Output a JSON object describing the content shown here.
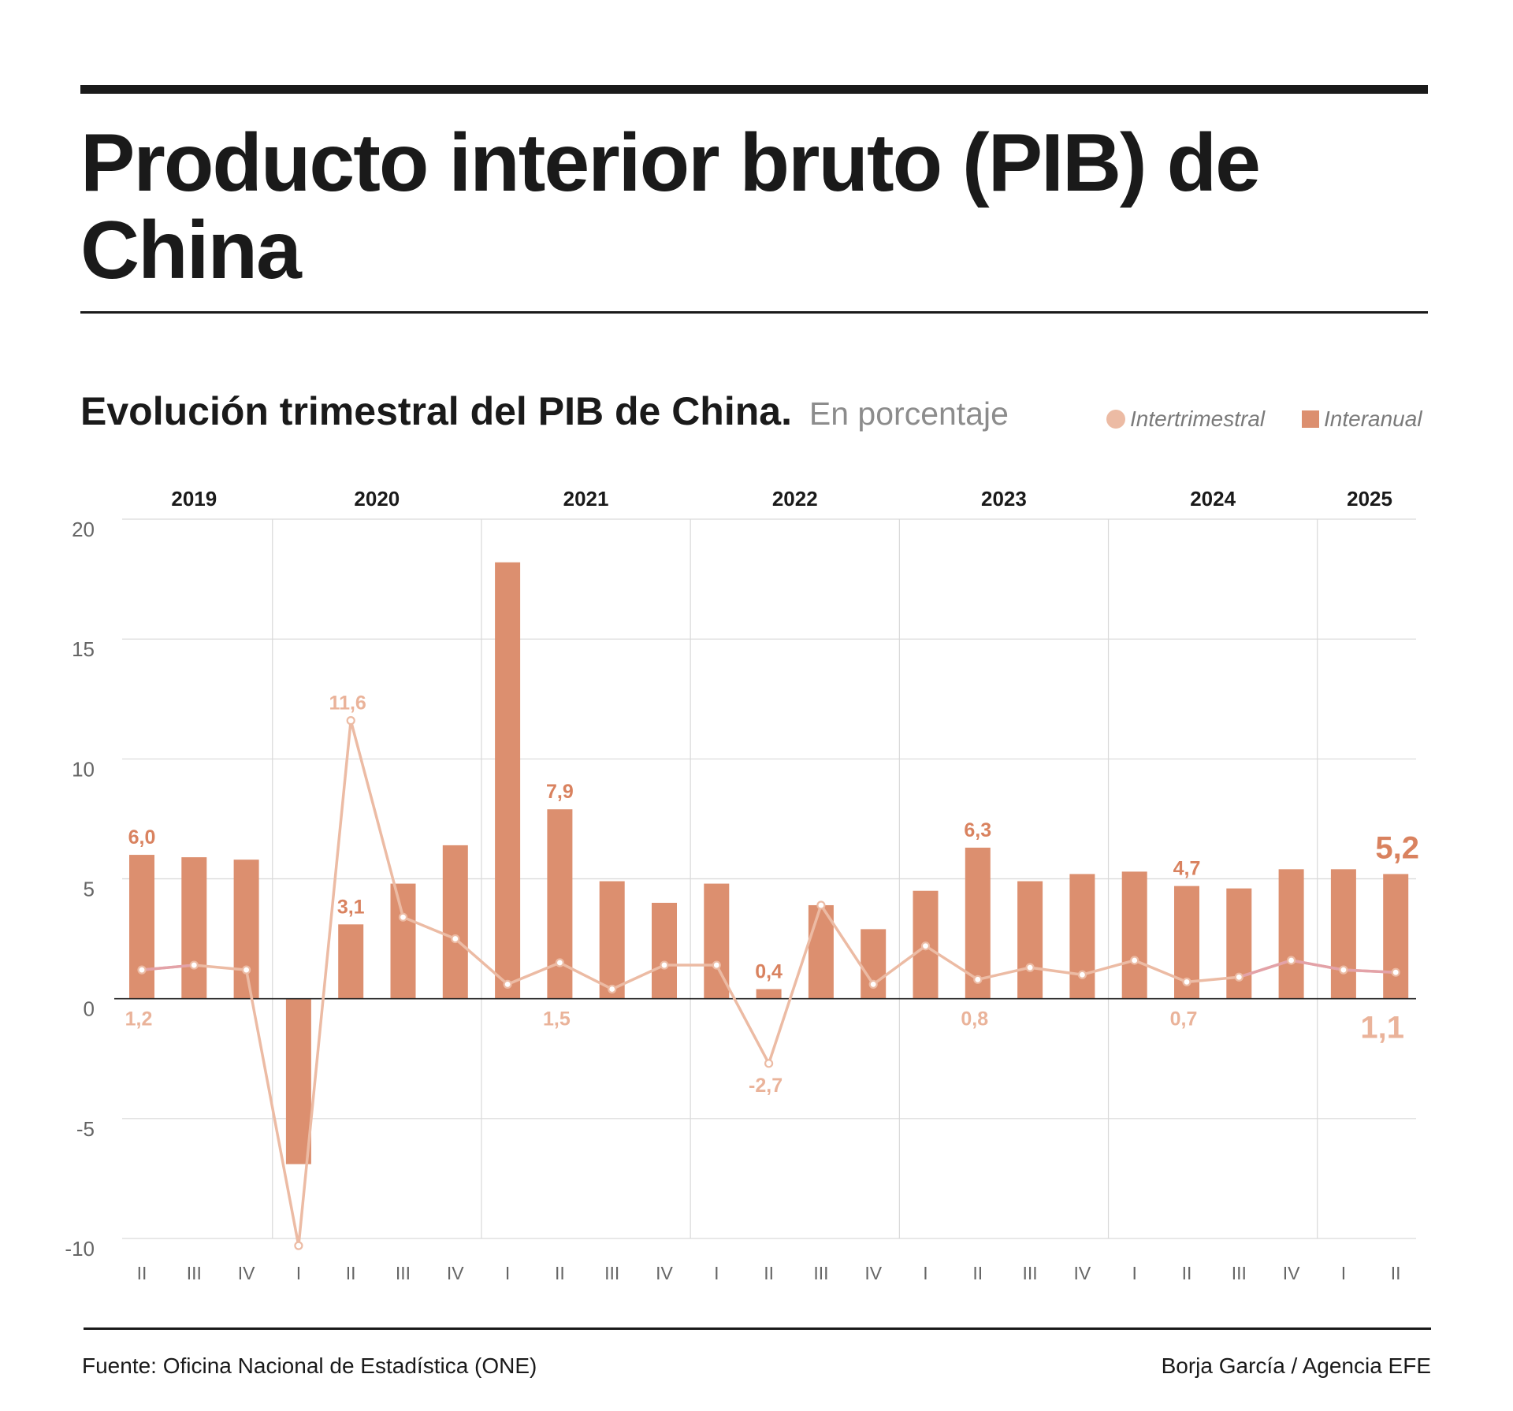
{
  "title": "Producto interior bruto (PIB) de China",
  "subtitle": "Evolución trimestral del PIB de China.",
  "subtitle_unit": "En porcentaje",
  "legend": {
    "intertrimestral": "Intertrimestral",
    "interanual": "Interanual"
  },
  "footer": {
    "source": "Fuente: Oficina Nacional de Estadística (ONE)",
    "credit": "Borja García / Agencia EFE"
  },
  "colors": {
    "bar": "#dc8f6f",
    "line": "#ecbba4",
    "line_highlight": "#e3a2a8",
    "label_bar": "#d9825f",
    "label_line": "#eab39a",
    "grid": "#d9d9d9",
    "axis_text": "#666666"
  },
  "chart_data": {
    "type": "bar",
    "ylim": [
      -10,
      20
    ],
    "yticks": [
      20,
      15,
      10,
      5,
      0,
      -5,
      -10
    ],
    "grid": true,
    "legend_position": "top-right",
    "years": [
      {
        "label": "2019",
        "start": 0,
        "end": 2
      },
      {
        "label": "2020",
        "start": 3,
        "end": 6
      },
      {
        "label": "2021",
        "start": 7,
        "end": 10
      },
      {
        "label": "2022",
        "start": 11,
        "end": 14
      },
      {
        "label": "2023",
        "start": 15,
        "end": 18
      },
      {
        "label": "2024",
        "start": 19,
        "end": 22
      },
      {
        "label": "2025",
        "start": 23,
        "end": 24
      }
    ],
    "categories": [
      "II",
      "III",
      "IV",
      "I",
      "II",
      "III",
      "IV",
      "I",
      "II",
      "III",
      "IV",
      "I",
      "II",
      "III",
      "IV",
      "I",
      "II",
      "III",
      "IV",
      "I",
      "II",
      "III",
      "IV",
      "I",
      "II"
    ],
    "series": [
      {
        "name": "Interanual",
        "type": "bar",
        "values": [
          6.0,
          5.9,
          5.8,
          -6.9,
          3.1,
          4.8,
          6.4,
          18.2,
          7.9,
          4.9,
          4.0,
          4.8,
          0.4,
          3.9,
          2.9,
          4.5,
          6.3,
          4.9,
          5.2,
          5.3,
          4.7,
          4.6,
          5.4,
          5.4,
          5.2
        ],
        "labels": {
          "0": "6,0",
          "4": "3,1",
          "8": "7,9",
          "12": "0,4",
          "16": "6,3",
          "20": "4,7",
          "24": "5,2"
        }
      },
      {
        "name": "Intertrimestral",
        "type": "line",
        "values": [
          1.2,
          1.4,
          1.2,
          -10.3,
          11.6,
          3.4,
          2.5,
          0.6,
          1.5,
          0.4,
          1.4,
          1.4,
          -2.7,
          3.9,
          0.6,
          2.2,
          0.8,
          1.3,
          1.0,
          1.6,
          0.7,
          0.9,
          1.6,
          1.2,
          1.1
        ],
        "labels": {
          "0": "1,2",
          "4": "11,6",
          "8": "1,5",
          "12": "-2,7",
          "16": "0,8",
          "20": "0,7",
          "24": "1,1"
        }
      }
    ]
  }
}
